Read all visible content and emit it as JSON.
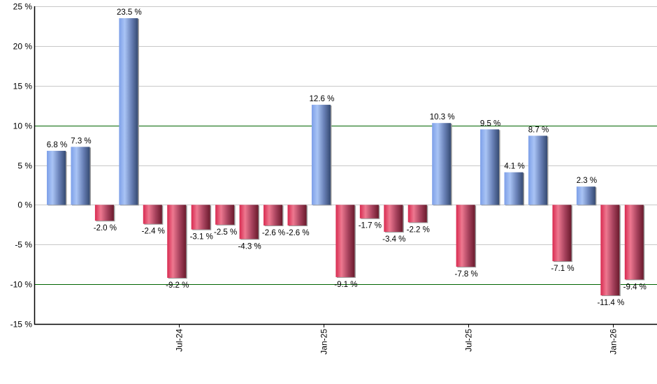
{
  "chart_data": {
    "type": "bar",
    "title": "",
    "xlabel": "",
    "ylabel": "",
    "ylim": [
      -15,
      25
    ],
    "y_ticks": [
      "25 %",
      "20 %",
      "15 %",
      "10 %",
      "5 %",
      "0 %",
      "-5 %",
      "-10 %",
      "-15 %"
    ],
    "y_tick_values": [
      25,
      20,
      15,
      10,
      5,
      0,
      -5,
      -10,
      -15
    ],
    "x_ticks": [
      "Jul-24",
      "Jan-25",
      "Jul-25",
      "Jan-26"
    ],
    "x_tick_bar_positions": [
      5.5,
      11.5,
      17.5,
      23.5
    ],
    "reference_lines": [
      10,
      -10
    ],
    "grid": true,
    "legend": null,
    "values": [
      6.8,
      7.3,
      -2.0,
      23.5,
      -2.4,
      -9.2,
      -3.1,
      -2.5,
      -4.3,
      -2.6,
      -2.6,
      12.6,
      -9.1,
      -1.7,
      -3.4,
      -2.2,
      10.3,
      -7.8,
      9.5,
      4.1,
      8.7,
      -7.1,
      2.3,
      -11.4,
      -9.4
    ],
    "labels": [
      "6.8 %",
      "7.3 %",
      "-2.0 %",
      "23.5 %",
      "-2.4 %",
      "-9.2 %",
      "-3.1 %",
      "-2.5 %",
      "-4.3 %",
      "-2.6 %",
      "-2.6 %",
      "12.6 %",
      "-9.1 %",
      "-1.7 %",
      "-3.4 %",
      "-2.2 %",
      "10.3 %",
      "-7.8 %",
      "9.5 %",
      "4.1 %",
      "8.7 %",
      "-7.1 %",
      "2.3 %",
      "-11.4 %",
      "-9.4 %"
    ],
    "colors": {
      "positive_light": "#a9c4f5",
      "positive_mid": "#7d9fe0",
      "positive_dark": "#3b4f78",
      "negative_light": "#f08aa0",
      "negative_mid": "#e0355c",
      "negative_dark": "#6e1a2c",
      "gridline": "#c8c8c8",
      "reference_line": "#006400",
      "axis": "#000000"
    }
  }
}
